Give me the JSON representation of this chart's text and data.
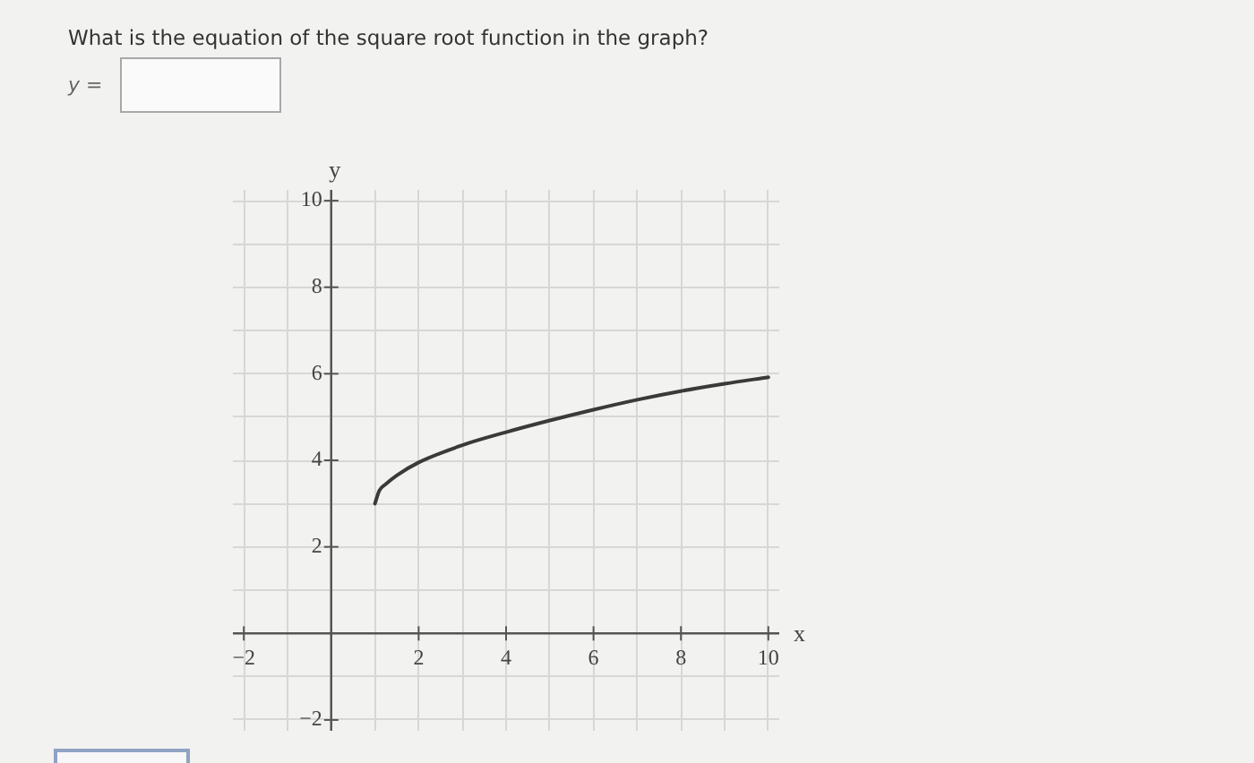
{
  "chart_data": {
    "type": "line",
    "title": "What is the equation of the square root function in the graph?",
    "annotations": [
      "y ="
    ],
    "xlabel": "x",
    "ylabel": "y",
    "x": [
      1,
      1.1,
      1.25,
      1.5,
      2,
      3,
      4,
      5,
      6,
      7,
      8,
      9,
      10
    ],
    "series": [
      {
        "color": "#3a3a3a",
        "values": [
          3.0,
          3.3,
          3.45,
          3.65,
          3.95,
          4.35,
          4.65,
          4.92,
          5.17,
          5.4,
          5.6,
          5.77,
          5.92
        ]
      }
    ],
    "xlim": [
      -2.25,
      10.25
    ],
    "ylim": [
      -2.25,
      10.25
    ],
    "xticks": [
      {
        "value": -2,
        "label": "−2"
      },
      {
        "value": -1,
        "label": null
      },
      {
        "value": 0,
        "label": null
      },
      {
        "value": 1,
        "label": null
      },
      2,
      {
        "value": 3,
        "label": null
      },
      4,
      {
        "value": 5,
        "label": null
      },
      6,
      {
        "value": 7,
        "label": null
      },
      8,
      {
        "value": 9,
        "label": null
      },
      10
    ],
    "yticks": [
      {
        "value": -2,
        "label": "−2"
      },
      {
        "value": -1,
        "label": null
      },
      {
        "value": 0,
        "label": null
      },
      {
        "value": 1,
        "label": null
      },
      2,
      {
        "value": 3,
        "label": null
      },
      4,
      {
        "value": 5,
        "label": null
      },
      6,
      {
        "value": 7,
        "label": null
      },
      8,
      {
        "value": 9,
        "label": null
      },
      10
    ],
    "grid": true,
    "legend": false,
    "marker": "none",
    "line_style": "solid"
  }
}
